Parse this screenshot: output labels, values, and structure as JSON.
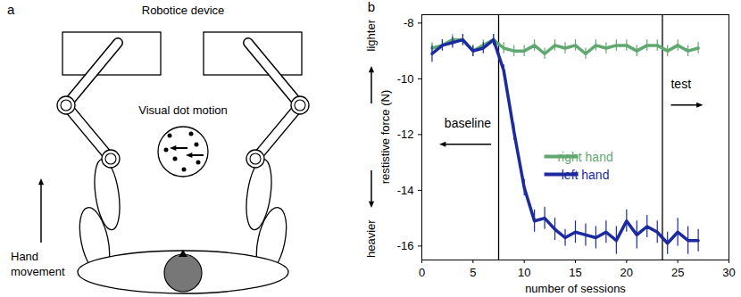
{
  "diagram": {
    "panel_letter": "a",
    "labels": {
      "device": "Robotice device",
      "stimulus": "Visual dot motion",
      "movement": "Hand movement"
    }
  },
  "chart_data": {
    "type": "line",
    "panel_letter": "b",
    "x_label": "number of sessions",
    "y_label": "restistive force (N)",
    "x": [
      1,
      2,
      3,
      4,
      5,
      6,
      7,
      8,
      9,
      10,
      11,
      12,
      13,
      14,
      15,
      16,
      17,
      18,
      19,
      20,
      21,
      22,
      23,
      24,
      25,
      26,
      27
    ],
    "series": [
      {
        "name": "right hand",
        "color": "#5fa870",
        "values": [
          -8.9,
          -8.8,
          -8.6,
          -8.6,
          -9.0,
          -8.8,
          -8.6,
          -8.9,
          -9.0,
          -9.0,
          -8.8,
          -9.1,
          -8.8,
          -8.9,
          -8.8,
          -9.1,
          -8.8,
          -8.9,
          -8.8,
          -8.8,
          -9.0,
          -8.8,
          -8.8,
          -9.0,
          -8.8,
          -9.0,
          -8.9
        ],
        "errors": [
          0.2,
          0.2,
          0.2,
          0.2,
          0.2,
          0.2,
          0.2,
          0.2,
          0.2,
          0.2,
          0.2,
          0.2,
          0.2,
          0.2,
          0.2,
          0.2,
          0.2,
          0.2,
          0.2,
          0.2,
          0.2,
          0.2,
          0.2,
          0.2,
          0.2,
          0.2,
          0.2
        ]
      },
      {
        "name": "left hand",
        "color": "#1c2aa0",
        "values": [
          -9.1,
          -8.8,
          -8.7,
          -8.6,
          -9.0,
          -8.9,
          -8.6,
          -9.7,
          -11.9,
          -13.9,
          -15.1,
          -15.0,
          -15.4,
          -15.7,
          -15.5,
          -15.6,
          -15.7,
          -15.5,
          -15.8,
          -15.1,
          -15.6,
          -15.3,
          -15.5,
          -15.9,
          -15.5,
          -15.8,
          -15.8
        ],
        "errors": [
          0.3,
          0.2,
          0.2,
          0.2,
          0.2,
          0.2,
          0.2,
          0.2,
          0.3,
          0.3,
          0.4,
          0.4,
          0.4,
          0.3,
          0.4,
          0.4,
          0.4,
          0.4,
          0.5,
          0.4,
          0.5,
          0.4,
          0.4,
          0.4,
          0.5,
          0.5,
          0.4
        ]
      }
    ],
    "xlim": [
      0,
      30
    ],
    "xticks": [
      0,
      5,
      10,
      15,
      20,
      25,
      30
    ],
    "ylim": [
      -16.5,
      -7.7
    ],
    "yticks": [
      -16,
      -14,
      -12,
      -10,
      -8
    ],
    "grid": false,
    "legend": "center",
    "annotations": {
      "y_direction_labels": {
        "top": "lighter",
        "bottom": "heavier"
      },
      "phase_boundaries": [
        7.5,
        23.5
      ],
      "phase_labels": {
        "before": "baseline",
        "after": "test"
      }
    }
  }
}
